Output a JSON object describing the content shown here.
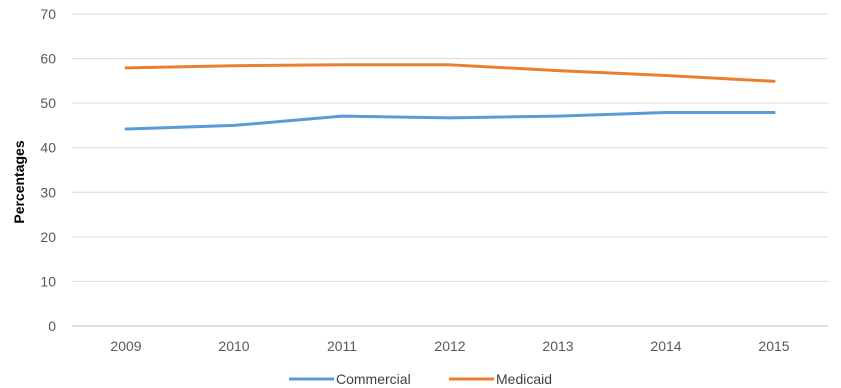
{
  "chart_data": {
    "type": "line",
    "title": "",
    "xlabel": "",
    "ylabel": "Percentages",
    "categories": [
      "2009",
      "2010",
      "2011",
      "2012",
      "2013",
      "2014",
      "2015"
    ],
    "yticks": [
      "0",
      "10",
      "20",
      "30",
      "40",
      "50",
      "60",
      "70"
    ],
    "ylim": [
      0,
      70
    ],
    "grid": true,
    "legend_position": "bottom",
    "series": [
      {
        "name": "Commercial",
        "color": "#5B9BD5",
        "values": [
          44.2,
          45.0,
          47.1,
          46.7,
          47.1,
          47.9,
          47.9
        ]
      },
      {
        "name": "Medicaid",
        "color": "#ED7D31",
        "values": [
          57.9,
          58.4,
          58.6,
          58.6,
          57.3,
          56.2,
          54.9
        ]
      }
    ]
  }
}
